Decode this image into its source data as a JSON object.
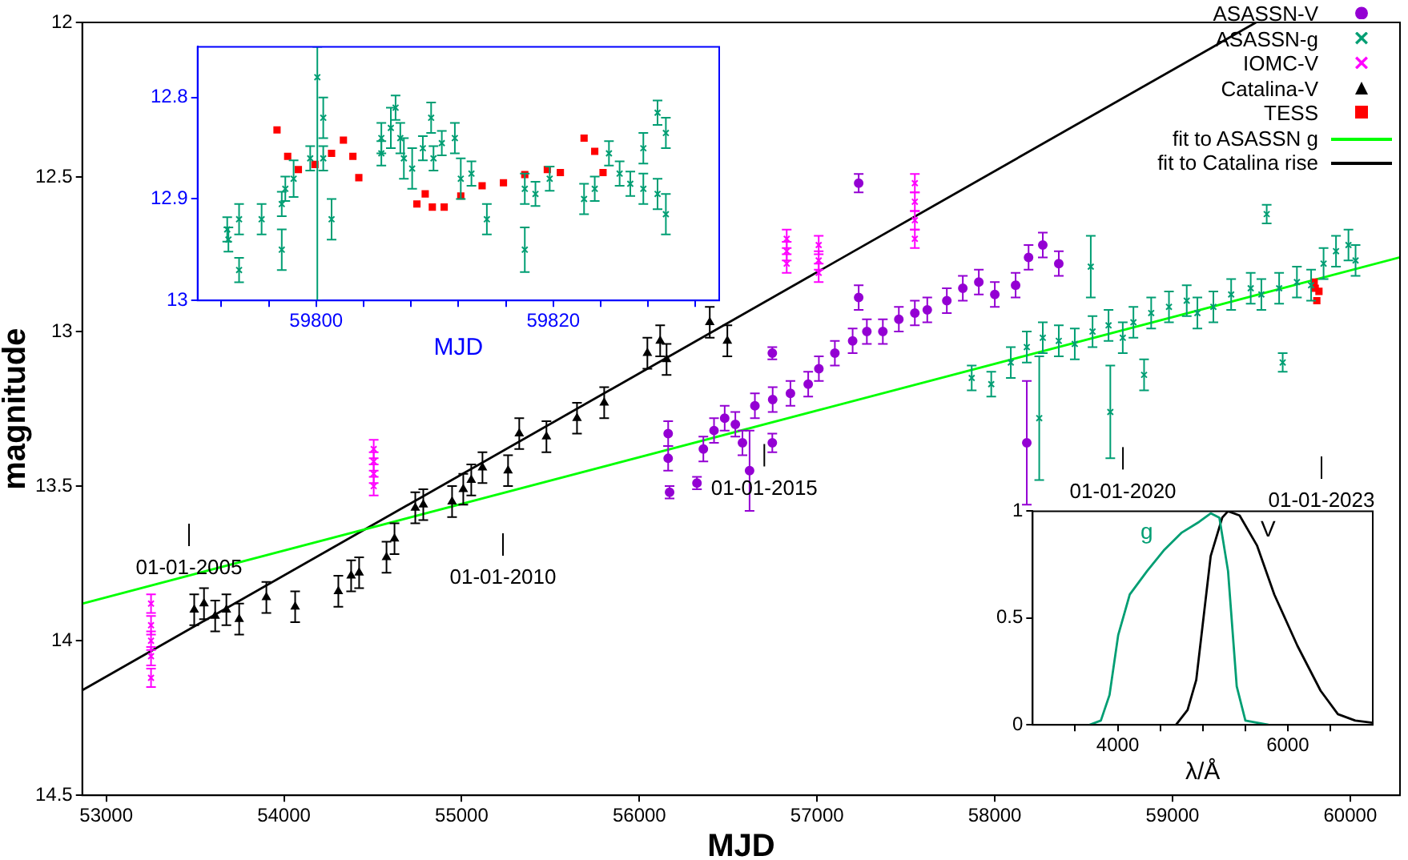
{
  "chart_data": [
    {
      "type": "scatter",
      "xlabel": "MJD",
      "ylabel": "magnitude",
      "xlim": [
        52865,
        60280
      ],
      "ylim": [
        14.5,
        12
      ],
      "xticks": [
        53000,
        54000,
        55000,
        56000,
        57000,
        58000,
        59000,
        60000
      ],
      "yticks": [
        12,
        12.5,
        13,
        13.5,
        14,
        14.5
      ],
      "legend": "top right",
      "series": [
        {
          "name": "ASASSN-V",
          "color": "#9400d3",
          "marker": "circle",
          "x": [
            56162,
            56162,
            56170,
            56324,
            56360,
            56420,
            56480,
            56540,
            56580,
            56620,
            56650,
            56748,
            56748,
            56750,
            56850,
            56950,
            57010,
            57100,
            57200,
            57234,
            57234,
            57280,
            57370,
            57460,
            57550,
            57620,
            57730,
            57820,
            57910,
            58000,
            58117,
            58180,
            58190,
            58270,
            58360
          ],
          "values": [
            13.33,
            13.41,
            13.52,
            13.49,
            13.38,
            13.32,
            13.28,
            13.3,
            13.36,
            13.45,
            13.24,
            13.07,
            13.36,
            13.22,
            13.2,
            13.17,
            13.12,
            13.07,
            13.03,
            12.52,
            12.89,
            13.0,
            13.0,
            12.96,
            12.94,
            12.93,
            12.9,
            12.86,
            12.84,
            12.88,
            12.85,
            13.36,
            12.76,
            12.72,
            12.78
          ],
          "errors": [
            0.04,
            0.04,
            0.02,
            0.02,
            0.04,
            0.04,
            0.04,
            0.04,
            0.04,
            0.13,
            0.04,
            0.02,
            0.03,
            0.04,
            0.04,
            0.04,
            0.04,
            0.04,
            0.04,
            0.03,
            0.04,
            0.04,
            0.04,
            0.04,
            0.04,
            0.04,
            0.04,
            0.04,
            0.04,
            0.04,
            0.04,
            0.2,
            0.04,
            0.04,
            0.04
          ]
        },
        {
          "name": "ASASSN-g",
          "color": "#009e73",
          "marker": "cross",
          "x": [
            57870,
            57980,
            58090,
            58180,
            58250,
            58270,
            58360,
            58450,
            58540,
            58550,
            58640,
            58650,
            58720,
            58780,
            58840,
            58880,
            58980,
            59080,
            59140,
            59230,
            59330,
            59440,
            59500,
            59530,
            59600,
            59620,
            59700,
            59780,
            59850,
            59920,
            59990,
            60030
          ],
          "values": [
            13.15,
            13.17,
            13.1,
            13.05,
            13.28,
            13.02,
            13.03,
            13.04,
            12.79,
            13.0,
            12.98,
            13.26,
            13.02,
            12.97,
            13.14,
            12.94,
            12.92,
            12.9,
            12.94,
            12.92,
            12.88,
            12.86,
            12.88,
            12.62,
            12.86,
            13.1,
            12.84,
            12.85,
            12.78,
            12.74,
            12.72,
            12.77
          ],
          "errors": [
            0.04,
            0.04,
            0.05,
            0.05,
            0.2,
            0.05,
            0.05,
            0.05,
            0.1,
            0.05,
            0.05,
            0.15,
            0.05,
            0.05,
            0.05,
            0.05,
            0.05,
            0.05,
            0.05,
            0.05,
            0.05,
            0.05,
            0.05,
            0.03,
            0.05,
            0.03,
            0.05,
            0.05,
            0.05,
            0.05,
            0.05,
            0.05
          ]
        },
        {
          "name": "IOMC-V",
          "color": "#ff00ff",
          "marker": "cross",
          "x": [
            53252,
            53252,
            53252,
            53252,
            53252,
            54505,
            54505,
            54505,
            54505,
            56829,
            56829,
            56829,
            57009,
            57009,
            57009,
            57550,
            57550,
            57550,
            57550
          ],
          "values": [
            13.88,
            13.95,
            14.0,
            14.05,
            14.12,
            13.38,
            13.42,
            13.46,
            13.5,
            12.7,
            12.74,
            12.78,
            12.72,
            12.77,
            12.81,
            12.52,
            12.58,
            12.64,
            12.7
          ],
          "errors": [
            0.03,
            0.03,
            0.03,
            0.03,
            0.03,
            0.03,
            0.03,
            0.03,
            0.03,
            0.03,
            0.03,
            0.03,
            0.03,
            0.03,
            0.03,
            0.03,
            0.03,
            0.03,
            0.03
          ]
        },
        {
          "name": "Catalina-V",
          "color": "#000000",
          "marker": "triangle",
          "x": [
            53495,
            53550,
            53613,
            53676,
            53748,
            53901,
            54063,
            54306,
            54378,
            54423,
            54577,
            54622,
            54739,
            54784,
            54946,
            55009,
            55054,
            55117,
            55261,
            55324,
            55477,
            55649,
            55802,
            56045,
            56117,
            56153,
            56396,
            56495
          ],
          "values": [
            13.9,
            13.88,
            13.92,
            13.9,
            13.93,
            13.86,
            13.89,
            13.84,
            13.79,
            13.78,
            13.73,
            13.67,
            13.57,
            13.56,
            13.55,
            13.51,
            13.48,
            13.44,
            13.45,
            13.33,
            13.34,
            13.28,
            13.23,
            13.07,
            13.03,
            13.09,
            12.97,
            13.03
          ],
          "errors": [
            0.05,
            0.05,
            0.05,
            0.05,
            0.05,
            0.05,
            0.05,
            0.05,
            0.05,
            0.05,
            0.05,
            0.05,
            0.05,
            0.05,
            0.05,
            0.05,
            0.05,
            0.05,
            0.05,
            0.05,
            0.05,
            0.05,
            0.05,
            0.05,
            0.05,
            0.05,
            0.05,
            0.05
          ]
        },
        {
          "name": "TESS",
          "color": "#ff0000",
          "marker": "square",
          "x": [
            59797,
            59803,
            59812,
            59820,
            59824
          ],
          "values": [
            12.84,
            12.86,
            12.9,
            null,
            12.87
          ]
        },
        {
          "name": "fit to ASASSN g",
          "type": "line",
          "color": "#00ff00",
          "marker": "none",
          "x": [
            52865,
            60280
          ],
          "values": [
            13.88,
            12.76
          ]
        },
        {
          "name": "fit to Catalina rise",
          "type": "line",
          "color": "#000000",
          "marker": "none",
          "x": [
            52865,
            59470
          ],
          "values": [
            14.16,
            12.0
          ]
        }
      ],
      "annotations": [
        "01-01-2005",
        "01-01-2010",
        {
          "text": "01-01-2015",
          "x": 56703,
          "y": 13.4
        },
        {
          "text": "01-01-2020",
          "x": 58721,
          "y": 13.41
        },
        "01-01-2023"
      ]
    },
    {
      "type": "scatter",
      "xlabel": "MJD",
      "xlim": [
        59790,
        59834
      ],
      "ylim": [
        13,
        12.75
      ],
      "xticks": [
        {
          "value": 59792,
          "label": null
        },
        {
          "value": 59796,
          "label": null
        },
        59800,
        {
          "value": 59804,
          "label": null
        },
        {
          "value": 59808,
          "label": null
        },
        {
          "value": 59812,
          "label": null
        },
        {
          "value": 59816,
          "label": null
        },
        59820,
        {
          "value": 59824,
          "label": null
        },
        {
          "value": 59828,
          "label": null
        },
        {
          "value": 59832,
          "label": null
        }
      ],
      "yticks": [
        12.8,
        12.9,
        13
      ],
      "series": [
        {
          "color": "#009e73",
          "marker": "cross",
          "x": [
            59792.5,
            59792.6,
            59793.5,
            59793.5,
            59795.4,
            59797.1,
            59797.1,
            59797.4,
            59798.1,
            59799.5,
            59800.1,
            59800.6,
            59800.6,
            59801.3,
            59805.5,
            59805.5,
            59806.3,
            59806.7,
            59807.1,
            59807.4,
            59808.1,
            59809,
            59809.7,
            59809.9,
            59810.6,
            59811.7,
            59812.2,
            59813.1,
            59814.4,
            59817.6,
            59817.6,
            59818.5,
            59819.7,
            59822.6,
            59823.5,
            59824.7,
            59825.6,
            59826.5,
            59827.6,
            59827.6,
            59828.8,
            59828.8,
            59829.5,
            59829.5
          ],
          "values": [
            12.93,
            12.94,
            12.92,
            12.97,
            12.92,
            12.905,
            12.95,
            12.89,
            12.88,
            12.86,
            12.78,
            12.82,
            12.86,
            12.92,
            12.84,
            12.855,
            12.83,
            12.81,
            12.84,
            12.86,
            12.87,
            12.85,
            12.82,
            12.86,
            12.845,
            12.84,
            12.88,
            12.875,
            12.92,
            12.95,
            12.89,
            12.895,
            12.88,
            12.9,
            12.89,
            12.855,
            12.875,
            12.885,
            12.85,
            12.89,
            12.815,
            12.895,
            12.835,
            12.915
          ],
          "errors": [
            0.012,
            0.012,
            0.015,
            0.012,
            0.015,
            0.012,
            0.02,
            0.012,
            0.018,
            0.012,
            [
              12.75,
              13.0
            ],
            0.02,
            0.012,
            0.02,
            0.015,
            0.012,
            0.02,
            0.012,
            0.015,
            0.02,
            0.02,
            0.012,
            0.015,
            0.012,
            0.012,
            0.015,
            0.02,
            0.012,
            0.015,
            0.022,
            0.015,
            0.012,
            0.012,
            0.015,
            0.012,
            0.012,
            0.012,
            0.012,
            0.015,
            0.015,
            0.012,
            0.015,
            0.015,
            0.02
          ]
        },
        {
          "color": "#ff0000",
          "marker": "square",
          "x": [
            59796.7,
            59797.6,
            59798.5,
            59799.9,
            59801.3,
            59802.3,
            59803.1,
            59803.6,
            59808.5,
            59809.2,
            59809.8,
            59810.8,
            59812.2,
            59814,
            59815.8,
            59817.6,
            59819.5,
            59820.6,
            59822.6,
            59823.5,
            59824.2
          ],
          "values": [
            12.832,
            12.858,
            12.871,
            12.866,
            12.855,
            12.842,
            12.858,
            12.879,
            12.905,
            12.895,
            12.908,
            12.908,
            12.897,
            12.887,
            12.884,
            12.876,
            12.871,
            12.874,
            12.84,
            12.853,
            12.874
          ]
        }
      ]
    },
    {
      "type": "line",
      "xlabel": "λ/Å",
      "xlim": [
        3000,
        7000
      ],
      "ylim": [
        0,
        1
      ],
      "xticks": [
        {
          "value": 3500,
          "label": null
        },
        4000,
        {
          "value": 4500,
          "label": null
        },
        {
          "value": 5000,
          "label": null
        },
        {
          "value": 5500,
          "label": null
        },
        6000,
        {
          "value": 6500,
          "label": null
        }
      ],
      "yticks": [
        0,
        0.5,
        1
      ],
      "marker": "none",
      "series": [
        {
          "name": "g",
          "color": "#009e73",
          "x": [
            3666,
            3802,
            3904,
            4006,
            4142,
            4346,
            4550,
            4754,
            4958,
            5094,
            5196,
            5298,
            5400,
            5502,
            5774
          ],
          "values": [
            0,
            0.02,
            0.14,
            0.42,
            0.61,
            0.72,
            0.82,
            0.9,
            0.95,
            0.99,
            0.97,
            0.72,
            0.18,
            0.02,
            0
          ]
        },
        {
          "name": "V",
          "color": "#000000",
          "x": [
            4686,
            4822,
            4924,
            5094,
            5230,
            5298,
            5434,
            5638,
            5842,
            6114,
            6386,
            6590,
            6794,
            6998
          ],
          "values": [
            0,
            0.07,
            0.21,
            0.79,
            0.97,
            1,
            0.98,
            0.84,
            0.61,
            0.37,
            0.16,
            0.05,
            0.02,
            0.01
          ]
        }
      ]
    }
  ]
}
